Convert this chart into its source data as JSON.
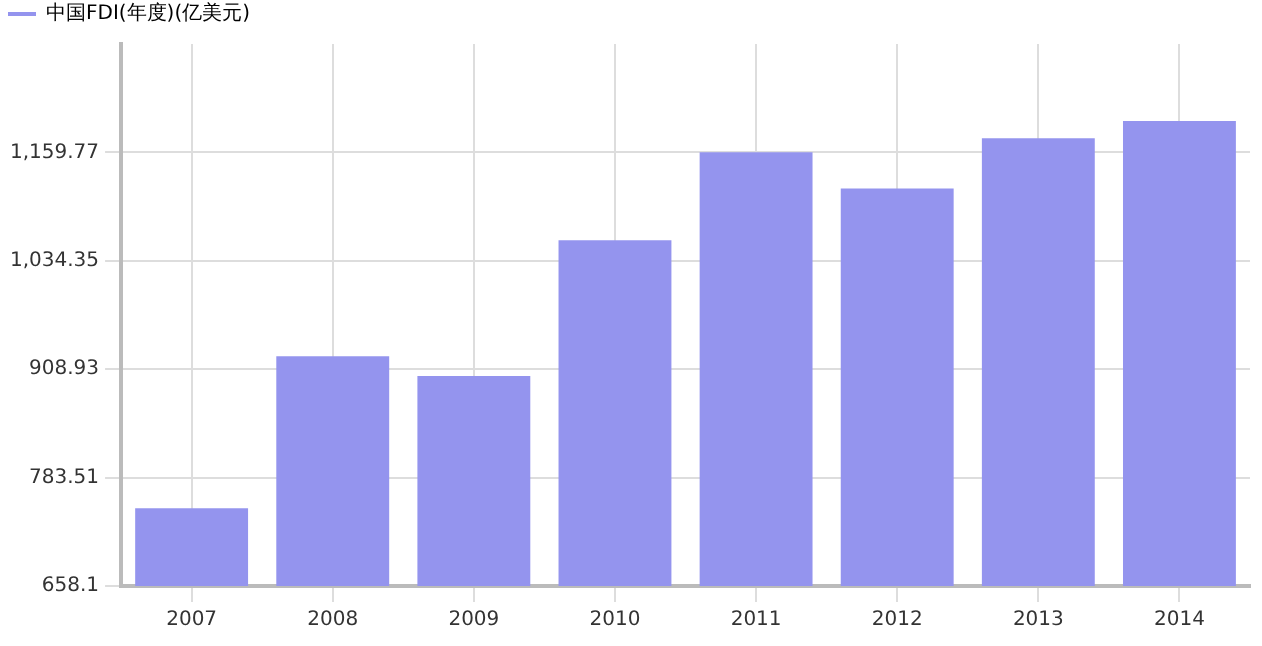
{
  "chart_data": {
    "type": "bar",
    "categories": [
      "2007",
      "2008",
      "2009",
      "2010",
      "2011",
      "2012",
      "2013",
      "2014"
    ],
    "series": [
      {
        "name": "中国FDI(年度)(亿美元)",
        "color": "#9494ee",
        "values": [
          748,
          924,
          901,
          1058,
          1160,
          1118,
          1176,
          1196
        ]
      }
    ],
    "ylim": [
      658.1,
      1285.19
    ],
    "yticks": [
      {
        "value": 658.1,
        "label": "658.1"
      },
      {
        "value": 783.51,
        "label": "783.51"
      },
      {
        "value": 908.93,
        "label": "908.93"
      },
      {
        "value": 1034.35,
        "label": "1,034.35"
      },
      {
        "value": 1159.77,
        "label": "1,159.77"
      }
    ],
    "grid": true,
    "legend": "top left"
  }
}
